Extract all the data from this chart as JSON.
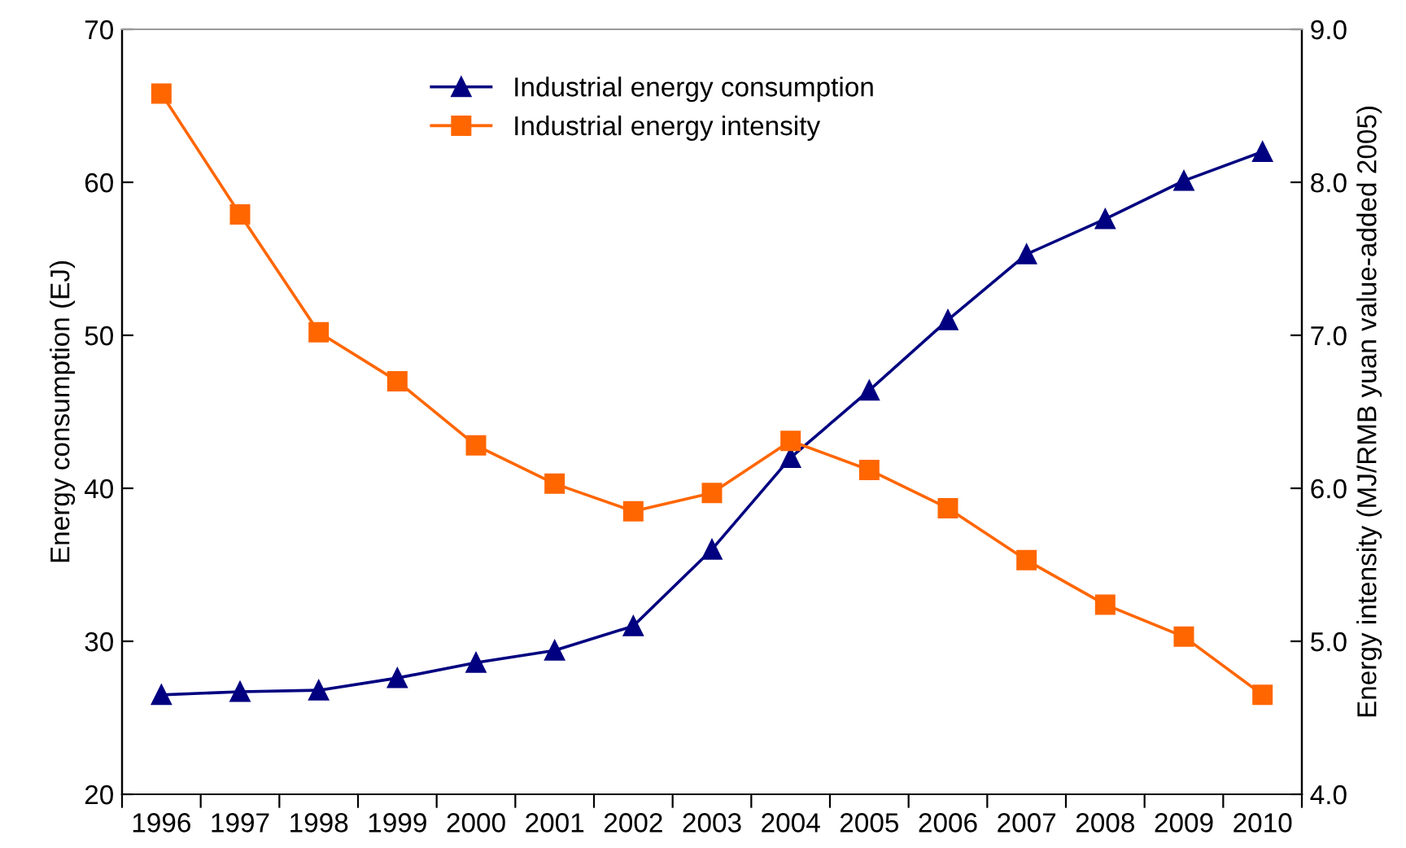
{
  "chart_data": {
    "type": "line",
    "categories": [
      "1996",
      "1997",
      "1998",
      "1999",
      "2000",
      "2001",
      "2002",
      "2003",
      "2004",
      "2005",
      "2006",
      "2007",
      "2008",
      "2009",
      "2010"
    ],
    "ylabel": "Energy consumption (EJ)",
    "y2label": "Energy intensity (MJ/RMB yuan value-added 2005)",
    "ylim": [
      20,
      70
    ],
    "yticks": [
      20,
      30,
      40,
      50,
      60,
      70
    ],
    "y2lim": [
      4.0,
      9.0
    ],
    "y2ticks": [
      {
        "value": 4.0,
        "label": "4.0"
      },
      {
        "value": 5.0,
        "label": "5.0"
      },
      {
        "value": 6.0,
        "label": "6.0"
      },
      {
        "value": 7.0,
        "label": "7.0"
      },
      {
        "value": 8.0,
        "label": "8.0"
      },
      {
        "value": 9.0,
        "label": "9.0"
      }
    ],
    "grid": false,
    "legend": "top",
    "line_style": "solid",
    "series": [
      {
        "name": "Industrial energy consumption",
        "color": "#000080",
        "marker": "triangle",
        "values": [
          26.5,
          26.7,
          26.8,
          27.6,
          28.6,
          29.4,
          31.0,
          36.0,
          42.0,
          46.4,
          51.0,
          55.3,
          57.6,
          60.1,
          62.0
        ]
      },
      {
        "name": "Industrial energy intensity",
        "color": "#ff6600",
        "marker": "square",
        "axis": "y2",
        "values": [
          8.58,
          7.79,
          7.02,
          6.7,
          6.28,
          6.03,
          5.85,
          5.97,
          6.31,
          6.12,
          5.87,
          5.53,
          5.24,
          5.03,
          4.65
        ]
      }
    ]
  }
}
